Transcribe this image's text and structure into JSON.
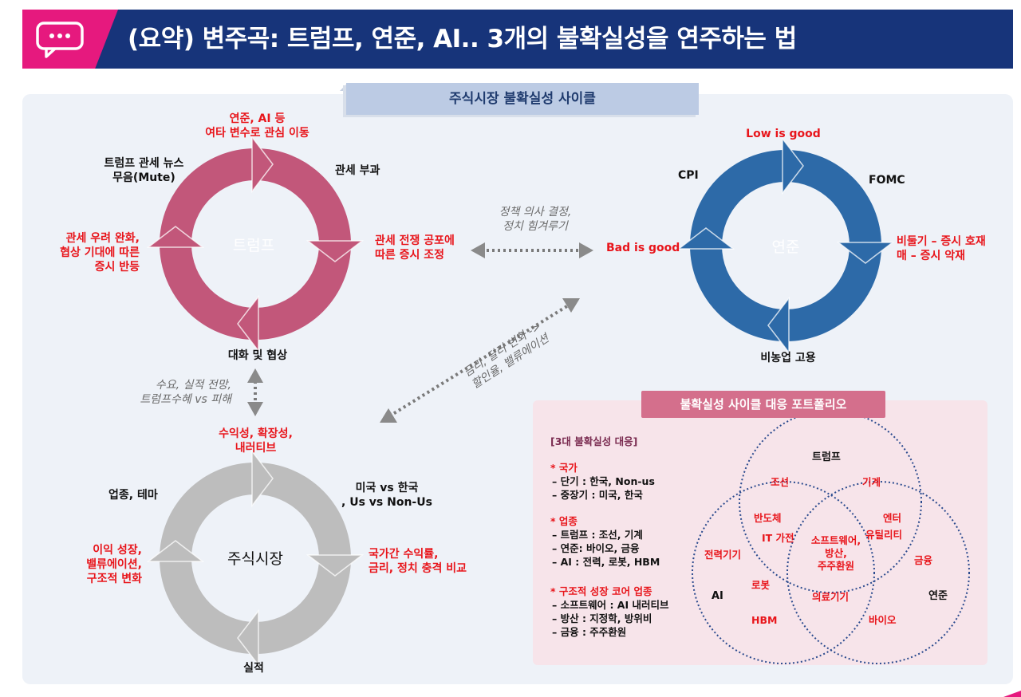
{
  "header": {
    "title": "(요약) 변주곡: 트럼프, 연준, AI.. 3개의 불확실성을 연주하는 법"
  },
  "cycle_title": "주식시장 불확실성 사이클",
  "trump_cycle": {
    "center": "트럼프",
    "top": "연준, AI 등\n여타 변수로 관심 이동",
    "top_left": "트럼프 관세 뉴스\n무음(Mute)",
    "top_right": "관세 부과",
    "right": "관세 전쟁 공포에\n따른 증시 조정",
    "bottom": "대화 및 협상",
    "left": "관세 우려 완화,\n협상 기대에 따른\n증시 반등"
  },
  "fed_cycle": {
    "center": "연준",
    "top": "Low is good",
    "top_left": "CPI",
    "top_right": "FOMC",
    "right": "비둘기 – 증시 호재\n매 – 증시 악재",
    "bottom": "비농업 고용",
    "left": "Bad is good"
  },
  "market_cycle": {
    "center": "주식시장",
    "top": "수익성, 확장성,\n내러티브",
    "top_left": "업종, 테마",
    "top_right": "미국 vs 한국\n, Us vs Non-Us",
    "right": "국가간 수익률,\n금리, 정치 충격 비교",
    "bottom": "실적",
    "left": "이익 성장,\n밸류에이션,\n구조적 변화"
  },
  "links": {
    "trump_fed": "정책 의사 결정,\n정치 힘겨루기",
    "trump_market": "수요, 실적 전망,\n트럼프수혜 vs 피해",
    "fed_market": "금리, 달러 변화 ->\n할인율, 밸류에이션"
  },
  "portfolio": {
    "title": "불확실성 사이클 대응 포트폴리오",
    "heading": "[3대 불확실성 대응]",
    "sections": [
      {
        "title": "* 국가",
        "lines": [
          "– 단기 : 한국, Non-us",
          "– 중장기 : 미국, 한국"
        ]
      },
      {
        "title": "* 업종",
        "lines": [
          "– 트럼프 : 조선, 기계",
          "– 연준: 바이오, 금융",
          "– AI : 전력, 로봇, HBM"
        ]
      },
      {
        "title": "* 구조적 성장 코어 업종",
        "lines": [
          "– 소프트웨어 : AI 내러티브",
          "– 방산 : 지정학, 방위비",
          "– 금융 : 주주환원"
        ]
      }
    ],
    "venn": {
      "set_trump": "트럼프",
      "set_ai": "AI",
      "set_fed": "연준",
      "trump_only_1": "조선",
      "trump_only_2": "기계",
      "trump_ai": "반도체",
      "trump_ai_2": "IT 가전",
      "trump_fed": "엔터",
      "trump_fed_2": "유틸리티",
      "all_three": "소프트웨어,\n방산,\n주주환원",
      "ai_only_1": "전력기기",
      "ai_only_2": "로봇",
      "ai_only_3": "HBM",
      "ai_fed": "의료기기",
      "fed_only_1": "금융",
      "fed_only_2": "바이오"
    }
  },
  "colors": {
    "header_bg": "#17347a",
    "accent": "#e6197e",
    "trump": "#c2577a",
    "fed": "#2d6aa8",
    "market": "#bdbdbd",
    "highlight_text": "#e8151b"
  }
}
